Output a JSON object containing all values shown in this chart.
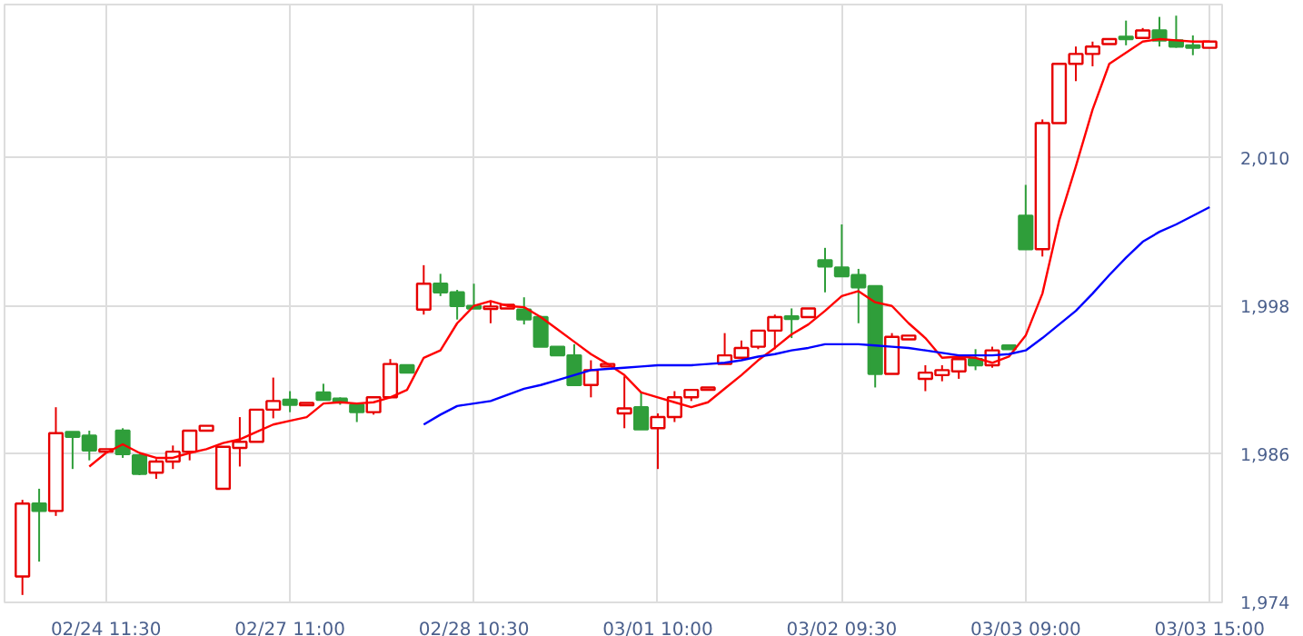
{
  "chart_data": {
    "type": "candlestick",
    "categories": [
      null,
      null,
      null,
      null,
      null,
      "02/24 11:30",
      null,
      null,
      null,
      null,
      null,
      null,
      null,
      null,
      null,
      null,
      "02/27 11:00",
      null,
      null,
      null,
      null,
      null,
      null,
      null,
      null,
      null,
      null,
      "02/28 10:30",
      null,
      null,
      null,
      null,
      null,
      null,
      null,
      null,
      null,
      null,
      "03/01 10:00",
      null,
      null,
      null,
      null,
      null,
      null,
      null,
      null,
      null,
      null,
      "03/02 09:30",
      null,
      null,
      null,
      null,
      null,
      null,
      null,
      null,
      null,
      null,
      "03/03 09:00",
      null,
      null,
      null,
      null,
      null,
      null,
      null,
      null,
      null,
      null,
      "03/03 15:00"
    ],
    "ohlc": [
      [
        1976.1,
        1982.3,
        1974.6,
        1982.0
      ],
      [
        1982.0,
        1983.2,
        1977.3,
        1981.4
      ],
      [
        1981.4,
        1989.8,
        1981.0,
        1987.7
      ],
      [
        1987.8,
        1987.8,
        1984.8,
        1987.4
      ],
      [
        1987.5,
        1987.9,
        1985.5,
        1986.3
      ],
      [
        1986.2,
        1986.4,
        1986.2,
        1986.4
      ],
      [
        1987.9,
        1988.1,
        1985.7,
        1986.0
      ],
      [
        1985.9,
        1985.9,
        1984.3,
        1984.4
      ],
      [
        1984.5,
        1985.6,
        1984.0,
        1985.4
      ],
      [
        1985.4,
        1986.7,
        1984.8,
        1986.2
      ],
      [
        1986.2,
        1987.9,
        1985.5,
        1987.9
      ],
      [
        1987.9,
        1988.3,
        1987.9,
        1988.3
      ],
      [
        1983.2,
        1986.6,
        1983.2,
        1986.6
      ],
      [
        1986.5,
        1989.0,
        1985.0,
        1987.0
      ],
      [
        1987.0,
        1989.6,
        1987.0,
        1989.6
      ],
      [
        1989.6,
        1992.2,
        1988.9,
        1990.3
      ],
      [
        1990.4,
        1991.1,
        1989.4,
        1990.0
      ],
      [
        1990.0,
        1990.1,
        1990.0,
        1990.1
      ],
      [
        1991.0,
        1991.7,
        1990.4,
        1990.4
      ],
      [
        1990.5,
        1990.6,
        1990.0,
        1990.2
      ],
      [
        1990.0,
        1990.0,
        1988.6,
        1989.4
      ],
      [
        1989.4,
        1990.7,
        1989.2,
        1990.6
      ],
      [
        1990.6,
        1993.7,
        1990.6,
        1993.3
      ],
      [
        1993.2,
        1993.2,
        1992.6,
        1992.6
      ],
      [
        1997.7,
        2001.3,
        1997.3,
        1999.8
      ],
      [
        1999.8,
        2000.6,
        1998.8,
        1999.1
      ],
      [
        1999.1,
        1999.3,
        1996.9,
        1998.0
      ],
      [
        1998.0,
        1999.8,
        1997.8,
        1997.8
      ],
      [
        1997.8,
        1998.4,
        1996.6,
        1997.9
      ],
      [
        1997.8,
        1998.1,
        1997.8,
        1998.1
      ],
      [
        1997.7,
        1998.7,
        1996.5,
        1996.9
      ],
      [
        1997.1,
        1997.2,
        1994.7,
        1994.7
      ],
      [
        1994.7,
        1994.7,
        1994.0,
        1994.0
      ],
      [
        1994.0,
        1994.9,
        1991.6,
        1991.6
      ],
      [
        1991.6,
        1993.6,
        1990.6,
        1992.8
      ],
      [
        1993.1,
        1993.3,
        1993.1,
        1993.3
      ],
      [
        1989.3,
        1992.3,
        1988.1,
        1989.7
      ],
      [
        1989.8,
        1991.0,
        1988.0,
        1988.0
      ],
      [
        1988.1,
        1989.3,
        1984.8,
        1989.0
      ],
      [
        1989.0,
        1991.1,
        1988.6,
        1990.6
      ],
      [
        1990.6,
        1991.2,
        1990.3,
        1991.2
      ],
      [
        1991.2,
        1991.4,
        1991.2,
        1991.4
      ],
      [
        1993.3,
        1995.8,
        1993.3,
        1994.0
      ],
      [
        1993.8,
        1995.2,
        1993.7,
        1994.6
      ],
      [
        1994.7,
        1996.0,
        1994.5,
        1996.0
      ],
      [
        1996.0,
        1997.3,
        1994.5,
        1997.1
      ],
      [
        1997.1,
        1997.8,
        1995.4,
        1997.0
      ],
      [
        1997.1,
        1997.8,
        1997.1,
        1997.8
      ],
      [
        2001.7,
        2002.7,
        1999.1,
        2001.2
      ],
      [
        2001.1,
        2004.6,
        2000.4,
        2000.4
      ],
      [
        2000.5,
        2001.0,
        1996.6,
        1999.5
      ],
      [
        1999.6,
        1999.6,
        1991.4,
        1992.5
      ],
      [
        1992.5,
        1995.8,
        1992.5,
        1995.5
      ],
      [
        1995.3,
        1995.6,
        1995.3,
        1995.6
      ],
      [
        1992.1,
        1993.2,
        1991.1,
        1992.6
      ],
      [
        1992.4,
        1993.2,
        1991.9,
        1992.8
      ],
      [
        1992.7,
        1993.9,
        1992.1,
        1993.7
      ],
      [
        1993.7,
        1994.5,
        1992.8,
        1993.2
      ],
      [
        1993.2,
        1994.7,
        1993.0,
        1994.4
      ],
      [
        1994.8,
        1994.8,
        1994.5,
        1994.5
      ],
      [
        2005.3,
        2007.8,
        2002.6,
        2002.6
      ],
      [
        2002.6,
        2013.1,
        2002.0,
        2012.8
      ],
      [
        2012.8,
        2017.6,
        2012.8,
        2017.6
      ],
      [
        2017.6,
        2019.0,
        2016.2,
        2018.4
      ],
      [
        2018.4,
        2019.4,
        2017.4,
        2019.0
      ],
      [
        2019.2,
        2019.6,
        2019.2,
        2019.6
      ],
      [
        2019.8,
        2021.1,
        2019.1,
        2019.6
      ],
      [
        2019.7,
        2020.5,
        2019.7,
        2020.3
      ],
      [
        2020.3,
        2021.4,
        2019.0,
        2019.5
      ],
      [
        2019.5,
        2021.5,
        2018.9,
        2019.0
      ],
      [
        2019.1,
        2019.9,
        2018.3,
        2018.9
      ],
      [
        2018.9,
        2019.4,
        2018.9,
        2019.4
      ]
    ],
    "colors": [
      "#e60000",
      "#2f9e3a",
      "#e60000",
      "#2f9e3a",
      "#2f9e3a",
      "#e60000",
      "#2f9e3a",
      "#2f9e3a",
      "#e60000",
      "#e60000",
      "#e60000",
      "#e60000",
      "#e60000",
      "#e60000",
      "#e60000",
      "#e60000",
      "#2f9e3a",
      "#e60000",
      "#2f9e3a",
      "#2f9e3a",
      "#2f9e3a",
      "#e60000",
      "#e60000",
      "#2f9e3a",
      "#e60000",
      "#2f9e3a",
      "#2f9e3a",
      "#2f9e3a",
      "#e60000",
      "#e60000",
      "#2f9e3a",
      "#2f9e3a",
      "#2f9e3a",
      "#2f9e3a",
      "#e60000",
      "#e60000",
      "#e60000",
      "#2f9e3a",
      "#e60000",
      "#e60000",
      "#e60000",
      "#e60000",
      "#e60000",
      "#e60000",
      "#e60000",
      "#e60000",
      "#2f9e3a",
      "#e60000",
      "#2f9e3a",
      "#2f9e3a",
      "#2f9e3a",
      "#2f9e3a",
      "#e60000",
      "#e60000",
      "#e60000",
      "#e60000",
      "#e60000",
      "#2f9e3a",
      "#e60000",
      "#2f9e3a",
      "#2f9e3a",
      "#e60000",
      "#e60000",
      "#e60000",
      "#e60000",
      "#e60000",
      "#2f9e3a",
      "#e60000",
      "#2f9e3a",
      "#2f9e3a",
      "#2f9e3a",
      "#e60000"
    ],
    "series": [
      {
        "type": "line",
        "color": "#ff0000",
        "values": [
          null,
          null,
          null,
          null,
          1985.0,
          1986.1,
          1986.8,
          1986.1,
          1985.7,
          1985.7,
          1986.1,
          1986.4,
          1986.9,
          1987.2,
          1987.8,
          1988.4,
          1988.7,
          1989.0,
          1990.1,
          1990.2,
          1990.1,
          1990.2,
          1990.6,
          1991.2,
          1993.8,
          1994.4,
          1996.6,
          1998.0,
          1998.4,
          1998.0,
          1997.9,
          1997.1,
          1996.1,
          1995.1,
          1994.1,
          1993.3,
          1992.4,
          1991.0,
          1990.6,
          1990.2,
          1989.8,
          1990.2,
          1991.3,
          1992.4,
          1993.6,
          1994.6,
          1995.7,
          1996.5,
          1997.6,
          1998.8,
          1999.2,
          1998.3,
          1998.0,
          1996.6,
          1995.4,
          1993.8,
          1993.9,
          1993.8,
          1993.4,
          1993.9,
          1995.6,
          1999.0,
          2004.9,
          2009.3,
          2013.9,
          2017.6,
          2018.5,
          2019.4,
          2019.6,
          2019.5,
          2019.4,
          2019.4
        ]
      },
      {
        "type": "line",
        "color": "#0000ff",
        "values": [
          null,
          null,
          null,
          null,
          null,
          null,
          null,
          null,
          null,
          null,
          null,
          null,
          null,
          null,
          null,
          null,
          null,
          null,
          null,
          null,
          null,
          null,
          null,
          null,
          1988.4,
          1989.2,
          1989.9,
          1990.1,
          1990.3,
          1990.8,
          1991.3,
          1991.6,
          1992.0,
          1992.4,
          1992.8,
          1992.9,
          1993.0,
          1993.1,
          1993.2,
          1993.2,
          1993.2,
          1993.3,
          1993.4,
          1993.6,
          1993.9,
          1994.1,
          1994.4,
          1994.6,
          1994.9,
          1994.9,
          1994.9,
          1994.8,
          1994.7,
          1994.6,
          1994.4,
          1994.2,
          1994.0,
          1994.0,
          1994.0,
          1994.1,
          1994.4,
          1995.4,
          1996.5,
          1997.6,
          1999.0,
          2000.5,
          2001.9,
          2003.2,
          2004.0,
          2004.6,
          2005.3,
          2006.0
        ]
      }
    ],
    "ylim": [
      1974,
      2022.4
    ],
    "yticks": [
      {
        "value": 1974,
        "label": "1,974"
      },
      {
        "value": 1986,
        "label": "1,986"
      },
      {
        "value": 1998,
        "label": "1,998"
      },
      {
        "value": 2010,
        "label": "2,010"
      }
    ],
    "grid": true
  }
}
